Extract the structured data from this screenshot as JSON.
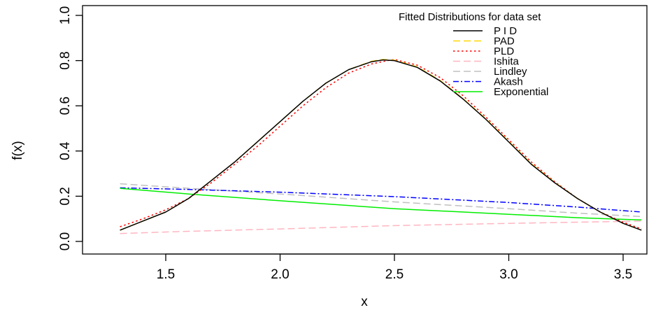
{
  "chart_data": {
    "type": "line",
    "title": "",
    "xlabel": "x",
    "ylabel": "f(x)",
    "xlim": [
      1.3,
      3.6
    ],
    "ylim": [
      0.0,
      1.0
    ],
    "x_ticks": [
      "1.5",
      "2.0",
      "2.5",
      "3.0",
      "3.5"
    ],
    "y_ticks": [
      "0.0",
      "0.2",
      "0.4",
      "0.6",
      "0.8",
      "1.0"
    ],
    "grid": false,
    "legend": {
      "title": "Fitted Distributions for data set",
      "placement": "top-right"
    },
    "series": [
      {
        "name": "P I D",
        "color": "#000000",
        "dash": "solid",
        "x": [
          1.3,
          1.4,
          1.5,
          1.6,
          1.7,
          1.8,
          1.9,
          2.0,
          2.1,
          2.2,
          2.3,
          2.4,
          2.45,
          2.5,
          2.6,
          2.7,
          2.8,
          2.9,
          3.0,
          3.1,
          3.2,
          3.3,
          3.4,
          3.5,
          3.58
        ],
        "y": [
          0.05,
          0.09,
          0.13,
          0.19,
          0.27,
          0.35,
          0.44,
          0.53,
          0.62,
          0.7,
          0.76,
          0.795,
          0.803,
          0.8,
          0.77,
          0.71,
          0.63,
          0.54,
          0.44,
          0.34,
          0.26,
          0.19,
          0.13,
          0.08,
          0.05
        ]
      },
      {
        "name": "PAD",
        "color": "#ffd700",
        "dash": "long",
        "x": [
          1.3,
          1.4,
          1.5,
          1.6,
          1.7,
          1.8,
          1.9,
          2.0,
          2.1,
          2.2,
          2.3,
          2.4,
          2.45,
          2.5,
          2.6,
          2.7,
          2.8,
          2.9,
          3.0,
          3.1,
          3.2,
          3.3,
          3.4,
          3.5,
          3.58
        ],
        "y": [
          0.05,
          0.09,
          0.13,
          0.19,
          0.27,
          0.35,
          0.44,
          0.53,
          0.62,
          0.7,
          0.76,
          0.797,
          0.805,
          0.802,
          0.772,
          0.712,
          0.632,
          0.542,
          0.442,
          0.342,
          0.262,
          0.19,
          0.13,
          0.08,
          0.05
        ]
      },
      {
        "name": "PLD",
        "color": "#ff0000",
        "dash": "dotted",
        "x": [
          1.3,
          1.4,
          1.5,
          1.6,
          1.7,
          1.8,
          1.9,
          2.0,
          2.1,
          2.2,
          2.3,
          2.4,
          2.47,
          2.5,
          2.6,
          2.7,
          2.8,
          2.9,
          3.0,
          3.1,
          3.2,
          3.3,
          3.4,
          3.5,
          3.58
        ],
        "y": [
          0.065,
          0.1,
          0.14,
          0.19,
          0.26,
          0.34,
          0.42,
          0.51,
          0.6,
          0.68,
          0.745,
          0.785,
          0.8,
          0.805,
          0.78,
          0.725,
          0.645,
          0.55,
          0.45,
          0.35,
          0.265,
          0.19,
          0.13,
          0.085,
          0.055
        ]
      },
      {
        "name": "Ishita",
        "color": "#ffb6c1",
        "dash": "long",
        "x": [
          1.3,
          1.6,
          2.0,
          2.5,
          3.0,
          3.3,
          3.58
        ],
        "y": [
          0.035,
          0.045,
          0.055,
          0.07,
          0.08,
          0.085,
          0.09
        ]
      },
      {
        "name": "Lindley",
        "color": "#c0c0c0",
        "dash": "long",
        "x": [
          1.3,
          1.6,
          2.0,
          2.5,
          3.0,
          3.3,
          3.58
        ],
        "y": [
          0.255,
          0.235,
          0.21,
          0.175,
          0.145,
          0.125,
          0.11
        ]
      },
      {
        "name": "Akash",
        "color": "#0000ff",
        "dash": "dashdot",
        "x": [
          1.3,
          1.6,
          2.0,
          2.5,
          3.0,
          3.3,
          3.58
        ],
        "y": [
          0.237,
          0.23,
          0.218,
          0.198,
          0.172,
          0.152,
          0.13
        ]
      },
      {
        "name": "Exponential",
        "color": "#00ee00",
        "dash": "solid",
        "x": [
          1.3,
          1.6,
          2.0,
          2.5,
          3.0,
          3.3,
          3.58
        ],
        "y": [
          0.235,
          0.21,
          0.18,
          0.145,
          0.12,
          0.105,
          0.095
        ]
      }
    ]
  }
}
